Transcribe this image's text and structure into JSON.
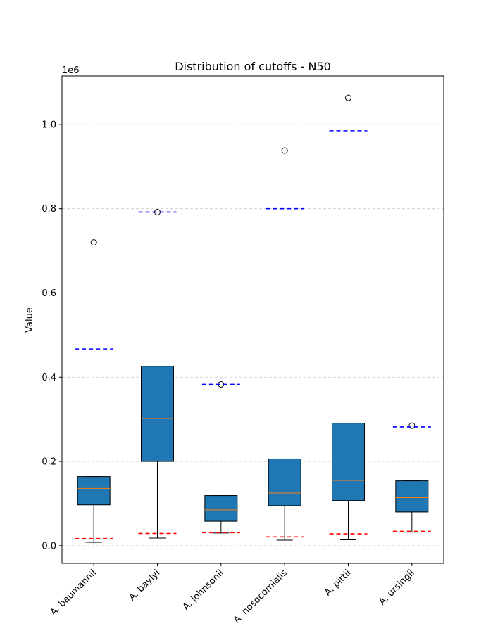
{
  "chart_data": {
    "type": "box",
    "title": "Distribution of cutoffs - N50",
    "xlabel": "",
    "ylabel": "Value",
    "y_scale_label": "1e6",
    "ylim": [
      -42000,
      1115000
    ],
    "y_ticks": [
      0.0,
      200000,
      400000,
      600000,
      800000,
      1000000
    ],
    "y_tick_labels": [
      "0.0",
      "0.2",
      "0.4",
      "0.6",
      "0.8",
      "1.0"
    ],
    "grid": "horizontal dashed",
    "categories": [
      "A. baumannii",
      "A. baylyi",
      "A. johnsonii",
      "A. nosocomialis",
      "A. pittii",
      "A. ursingii"
    ],
    "boxes": [
      {
        "whisker_low": 8000,
        "q1": 97000,
        "median": 136000,
        "q3": 164000,
        "whisker_high": 164000,
        "outliers": [
          720000
        ]
      },
      {
        "whisker_low": 18000,
        "q1": 200000,
        "median": 302000,
        "q3": 426000,
        "whisker_high": 426000,
        "outliers": [
          792000
        ]
      },
      {
        "whisker_low": 30000,
        "q1": 58000,
        "median": 85000,
        "q3": 119000,
        "whisker_high": 119000,
        "outliers": [
          383000
        ]
      },
      {
        "whisker_low": 13000,
        "q1": 95000,
        "median": 125000,
        "q3": 206000,
        "whisker_high": 206000,
        "outliers": [
          938000
        ]
      },
      {
        "whisker_low": 14000,
        "q1": 107000,
        "median": 155000,
        "q3": 291000,
        "whisker_high": 291000,
        "outliers": [
          1063000
        ]
      },
      {
        "whisker_low": 32000,
        "q1": 80000,
        "median": 114000,
        "q3": 154000,
        "whisker_high": 154000,
        "outliers": [
          285000
        ]
      }
    ],
    "upper_cutoffs": [
      467000,
      792000,
      383000,
      800000,
      985000,
      282000
    ],
    "lower_cutoffs": [
      17000,
      29000,
      31000,
      21000,
      28000,
      34000
    ],
    "colors": {
      "box_fill": "#1f77b4",
      "median": "#ff7f0e",
      "upper_cutoff": "#0000ff",
      "lower_cutoff": "#ff0000",
      "grid": "#cccccc"
    }
  }
}
